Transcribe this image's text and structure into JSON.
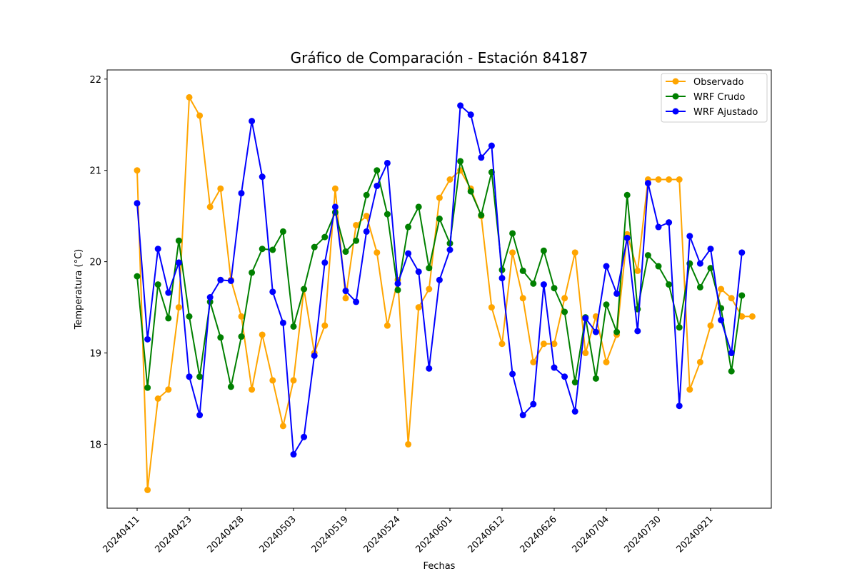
{
  "chart_data": {
    "type": "line",
    "title": "Gráfico de Comparación - Estación 84187",
    "xlabel": "Fechas",
    "ylabel": "Temperatura (°C)",
    "ylim": [
      17.3,
      22.1
    ],
    "yticks": [
      18,
      19,
      20,
      21,
      22
    ],
    "xtick_labels": [
      "20240411",
      "20240423",
      "20240428",
      "20240503",
      "20240519",
      "20240524",
      "20240601",
      "20240612",
      "20240626",
      "20240704",
      "20240730",
      "20240921"
    ],
    "grid": false,
    "legend_position": "top-right",
    "series": [
      {
        "name": "Observado",
        "color": "#ffa500",
        "values": [
          21.0,
          17.5,
          18.5,
          18.6,
          19.5,
          21.8,
          21.6,
          20.6,
          20.8,
          19.8,
          19.4,
          18.6,
          19.2,
          18.7,
          18.2,
          18.7,
          19.7,
          19.0,
          19.3,
          20.8,
          19.6,
          20.4,
          20.5,
          20.1,
          19.3,
          19.8,
          18.0,
          19.5,
          19.7,
          20.7,
          20.9,
          21.0,
          20.8,
          20.5,
          19.5,
          19.1,
          20.1,
          19.6,
          18.9,
          19.1,
          19.1,
          19.6,
          20.1,
          19.0,
          19.4,
          18.9,
          19.2,
          20.3,
          19.9,
          20.9,
          20.9,
          20.9,
          20.9,
          18.6,
          18.9,
          19.3,
          19.7,
          19.6,
          19.4,
          19.4
        ]
      },
      {
        "name": "WRF Crudo",
        "color": "#008000",
        "values": [
          19.84,
          18.62,
          19.75,
          19.38,
          20.23,
          19.4,
          18.74,
          19.56,
          19.17,
          18.63,
          19.18,
          19.88,
          20.14,
          20.13,
          20.33,
          19.29,
          19.7,
          20.16,
          20.27,
          20.54,
          20.11,
          20.23,
          20.73,
          21.0,
          20.52,
          19.69,
          20.38,
          20.6,
          19.93,
          20.47,
          20.2,
          21.1,
          20.77,
          20.51,
          20.98,
          19.91,
          20.31,
          19.9,
          19.76,
          20.12,
          19.71,
          19.45,
          18.68,
          19.39,
          18.72,
          19.53,
          19.23,
          20.73,
          19.48,
          20.07,
          19.95,
          19.75,
          19.28,
          19.98,
          19.72,
          19.93,
          19.49,
          18.8,
          19.63
        ]
      },
      {
        "name": "WRF Ajustado",
        "color": "#0000ff",
        "values": [
          20.64,
          19.15,
          20.14,
          19.66,
          19.99,
          18.74,
          18.32,
          19.61,
          19.8,
          19.79,
          20.75,
          21.54,
          20.93,
          19.67,
          19.33,
          17.89,
          18.08,
          18.97,
          19.99,
          20.6,
          19.68,
          19.56,
          20.33,
          20.83,
          21.08,
          19.76,
          20.09,
          19.89,
          18.83,
          19.8,
          20.13,
          21.71,
          21.61,
          21.14,
          21.27,
          19.82,
          18.77,
          18.32,
          18.44,
          19.75,
          18.84,
          18.74,
          18.36,
          19.38,
          19.23,
          19.95,
          19.65,
          20.26,
          19.24,
          20.86,
          20.38,
          20.43,
          18.42,
          20.28,
          19.98,
          20.14,
          19.36,
          19.0,
          20.1
        ]
      }
    ]
  }
}
